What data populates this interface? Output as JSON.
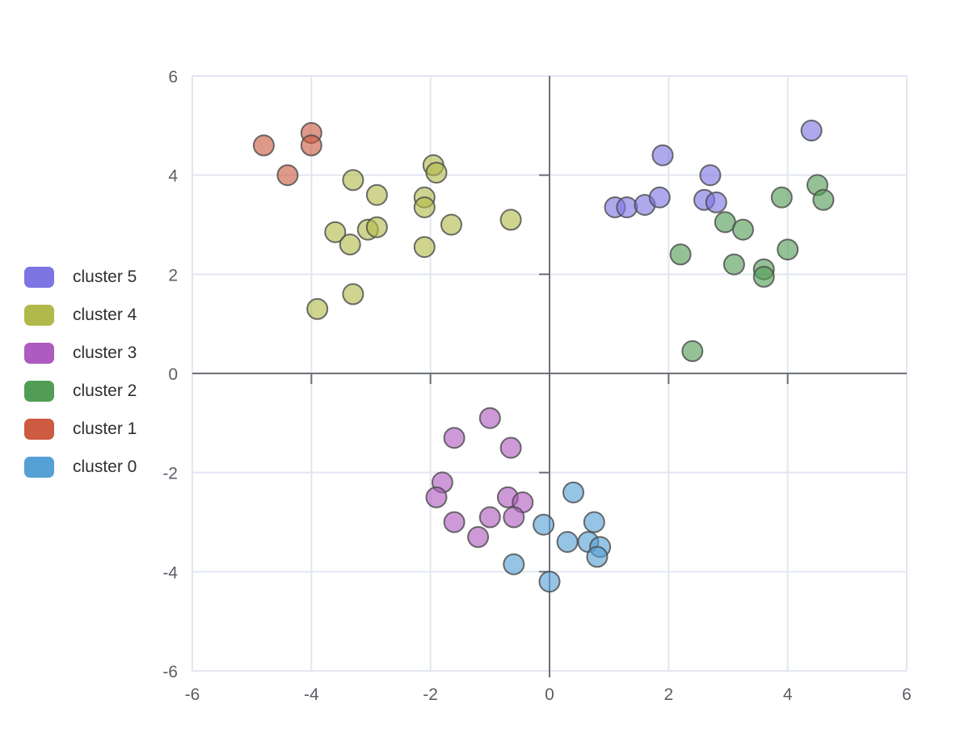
{
  "figure": {
    "background": "#ffffff",
    "grid_color": "#e2e6f2",
    "zero_axis_color": "#6b7076",
    "tick_label_color": "#5a5f66",
    "legend_label_color": "#2f2f2f"
  },
  "legend": {
    "position": "left",
    "items": [
      {
        "label": "cluster 5",
        "color": "#7d75e2"
      },
      {
        "label": "cluster 4",
        "color": "#b2b94b"
      },
      {
        "label": "cluster 3",
        "color": "#af5abe"
      },
      {
        "label": "cluster 2",
        "color": "#529d55"
      },
      {
        "label": "cluster 1",
        "color": "#cc5b41"
      },
      {
        "label": "cluster 0",
        "color": "#55a0d4"
      }
    ]
  },
  "chart_data": {
    "type": "scatter",
    "title": "",
    "xlabel": "",
    "ylabel": "",
    "xlim": [
      -6,
      6
    ],
    "ylim": [
      -6,
      6
    ],
    "x_ticks": [
      -6,
      -4,
      -2,
      0,
      2,
      4,
      6
    ],
    "y_ticks": [
      -6,
      -4,
      -2,
      0,
      2,
      4,
      6
    ],
    "grid": true,
    "zero_axes": true,
    "legend_position": "left",
    "marker": {
      "radius_px": 12.5,
      "fill_opacity": 0.62,
      "stroke_color": "#4a4a4a",
      "stroke_opacity": 0.8,
      "stroke_width": 2
    },
    "series": [
      {
        "name": "cluster 5",
        "color": "#7d75e2",
        "points": [
          [
            1.1,
            3.35
          ],
          [
            1.3,
            3.35
          ],
          [
            1.6,
            3.4
          ],
          [
            1.85,
            3.55
          ],
          [
            1.9,
            4.4
          ],
          [
            2.7,
            4.0
          ],
          [
            2.6,
            3.5
          ],
          [
            2.8,
            3.45
          ],
          [
            4.4,
            4.9
          ]
        ]
      },
      {
        "name": "cluster 4",
        "color": "#b2b94b",
        "points": [
          [
            -3.9,
            1.3
          ],
          [
            -3.3,
            1.6
          ],
          [
            -3.6,
            2.85
          ],
          [
            -3.35,
            2.6
          ],
          [
            -3.05,
            2.9
          ],
          [
            -2.9,
            2.95
          ],
          [
            -3.3,
            3.9
          ],
          [
            -2.9,
            3.6
          ],
          [
            -1.95,
            4.2
          ],
          [
            -1.9,
            4.05
          ],
          [
            -2.1,
            3.55
          ],
          [
            -2.1,
            3.35
          ],
          [
            -2.1,
            2.55
          ],
          [
            -1.65,
            3.0
          ],
          [
            -0.65,
            3.1
          ]
        ]
      },
      {
        "name": "cluster 3",
        "color": "#af5abe",
        "points": [
          [
            -1.0,
            -0.9
          ],
          [
            -1.6,
            -1.3
          ],
          [
            -0.65,
            -1.5
          ],
          [
            -1.8,
            -2.2
          ],
          [
            -1.9,
            -2.5
          ],
          [
            -0.7,
            -2.5
          ],
          [
            -0.45,
            -2.6
          ],
          [
            -1.0,
            -2.9
          ],
          [
            -0.6,
            -2.9
          ],
          [
            -1.6,
            -3.0
          ],
          [
            -1.2,
            -3.3
          ]
        ]
      },
      {
        "name": "cluster 2",
        "color": "#529d55",
        "points": [
          [
            3.9,
            3.55
          ],
          [
            4.5,
            3.8
          ],
          [
            4.6,
            3.5
          ],
          [
            2.95,
            3.05
          ],
          [
            3.25,
            2.9
          ],
          [
            2.2,
            2.4
          ],
          [
            3.1,
            2.2
          ],
          [
            3.6,
            2.1
          ],
          [
            3.6,
            1.95
          ],
          [
            4.0,
            2.5
          ],
          [
            2.4,
            0.45
          ]
        ]
      },
      {
        "name": "cluster 1",
        "color": "#cc5b41",
        "points": [
          [
            -4.8,
            4.6
          ],
          [
            -4.0,
            4.85
          ],
          [
            -4.0,
            4.6
          ],
          [
            -4.4,
            4.0
          ]
        ]
      },
      {
        "name": "cluster 0",
        "color": "#55a0d4",
        "points": [
          [
            0.4,
            -2.4
          ],
          [
            -0.1,
            -3.05
          ],
          [
            0.75,
            -3.0
          ],
          [
            0.3,
            -3.4
          ],
          [
            0.65,
            -3.4
          ],
          [
            0.85,
            -3.5
          ],
          [
            0.8,
            -3.7
          ],
          [
            -0.6,
            -3.85
          ],
          [
            0.0,
            -4.2
          ]
        ]
      }
    ]
  }
}
